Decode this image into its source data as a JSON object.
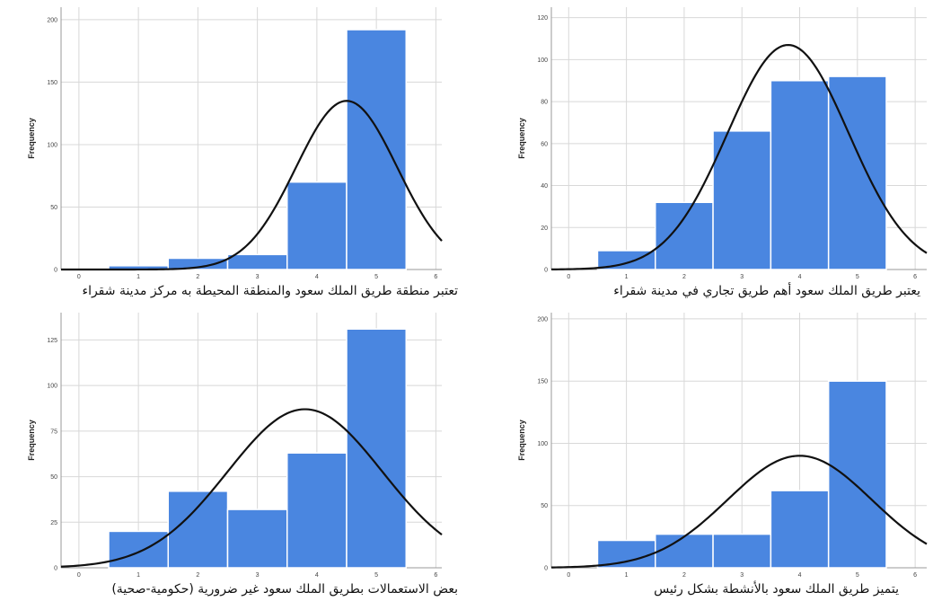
{
  "chart_data": [
    {
      "type": "bar",
      "title": "تعتبر منطقة طريق الملك سعود والمنطقة المحيطة به مركز مدينة شقراء",
      "ylabel": "Frequency",
      "xlabel": "",
      "categories": [
        1,
        2,
        3,
        4,
        5
      ],
      "values": [
        3,
        9,
        12,
        70,
        192
      ],
      "xlim": [
        -0.3,
        6.1
      ],
      "ylim": [
        0,
        210
      ],
      "xticks": [
        0,
        1,
        2,
        3,
        4,
        5,
        6
      ],
      "xtick_labels": [
        "0",
        "1",
        "2",
        "3",
        "4",
        "5",
        "6"
      ],
      "yticks": [
        0,
        50,
        100,
        150,
        200
      ],
      "ytick_labels": [
        "0",
        "50",
        "100",
        "150",
        "200"
      ],
      "normal_curve": {
        "mean": 4.5,
        "sd": 0.85,
        "peak": 135
      },
      "grid": true
    },
    {
      "type": "bar",
      "title": "يعتبر طريق الملك سعود أهم طريق تجاري في مدينة شقراء",
      "ylabel": "Frequency",
      "xlabel": "",
      "categories": [
        1,
        2,
        3,
        4,
        5
      ],
      "values": [
        9,
        32,
        66,
        90,
        92
      ],
      "xlim": [
        -0.3,
        6.2
      ],
      "ylim": [
        0,
        125
      ],
      "xticks": [
        0,
        1,
        2,
        3,
        4,
        5,
        6
      ],
      "xtick_labels": [
        "0",
        "1",
        "2",
        "3",
        "4",
        "5",
        "6"
      ],
      "yticks": [
        0,
        20,
        40,
        60,
        80,
        100,
        120
      ],
      "ytick_labels": [
        "0",
        "20",
        "40",
        "60",
        "80",
        "100",
        "120"
      ],
      "normal_curve": {
        "mean": 3.8,
        "sd": 1.05,
        "peak": 107
      },
      "grid": true
    },
    {
      "type": "bar",
      "title": "بعض الاستعمالات بطريق الملك سعود غير ضرورية (حكومية-صحية)",
      "ylabel": "Frequency",
      "xlabel": "",
      "categories": [
        1,
        2,
        3,
        4,
        5
      ],
      "values": [
        20,
        42,
        32,
        63,
        131
      ],
      "xlim": [
        -0.3,
        6.1
      ],
      "ylim": [
        0,
        140
      ],
      "xticks": [
        0,
        1,
        2,
        3,
        4,
        5,
        6
      ],
      "xtick_labels": [
        "0",
        "1",
        "2",
        "3",
        "4",
        "5",
        "6"
      ],
      "yticks": [
        0,
        25,
        50,
        75,
        100,
        125
      ],
      "ytick_labels": [
        "0",
        "25",
        "50",
        "75",
        "100",
        "125"
      ],
      "normal_curve": {
        "mean": 3.8,
        "sd": 1.3,
        "peak": 87
      },
      "grid": true
    },
    {
      "type": "bar",
      "title": "يتميز طريق الملك سعود بالأنشطة بشكل رئيس",
      "ylabel": "Frequency",
      "xlabel": "",
      "categories": [
        1,
        2,
        3,
        4,
        5
      ],
      "values": [
        22,
        27,
        27,
        62,
        150
      ],
      "xlim": [
        -0.3,
        6.2
      ],
      "ylim": [
        0,
        205
      ],
      "xticks": [
        0,
        1,
        2,
        3,
        4,
        5,
        6
      ],
      "xtick_labels": [
        "0",
        "1",
        "2",
        "3",
        "4",
        "5",
        "6"
      ],
      "yticks": [
        0,
        50,
        100,
        150,
        200
      ],
      "ytick_labels": [
        "0",
        "50",
        "100",
        "150",
        "200"
      ],
      "normal_curve": {
        "mean": 4.0,
        "sd": 1.25,
        "peak": 90
      },
      "grid": true
    }
  ],
  "colors": {
    "bar": "#4a86e0",
    "curve": "#111111",
    "grid": "#d8d8d8"
  }
}
